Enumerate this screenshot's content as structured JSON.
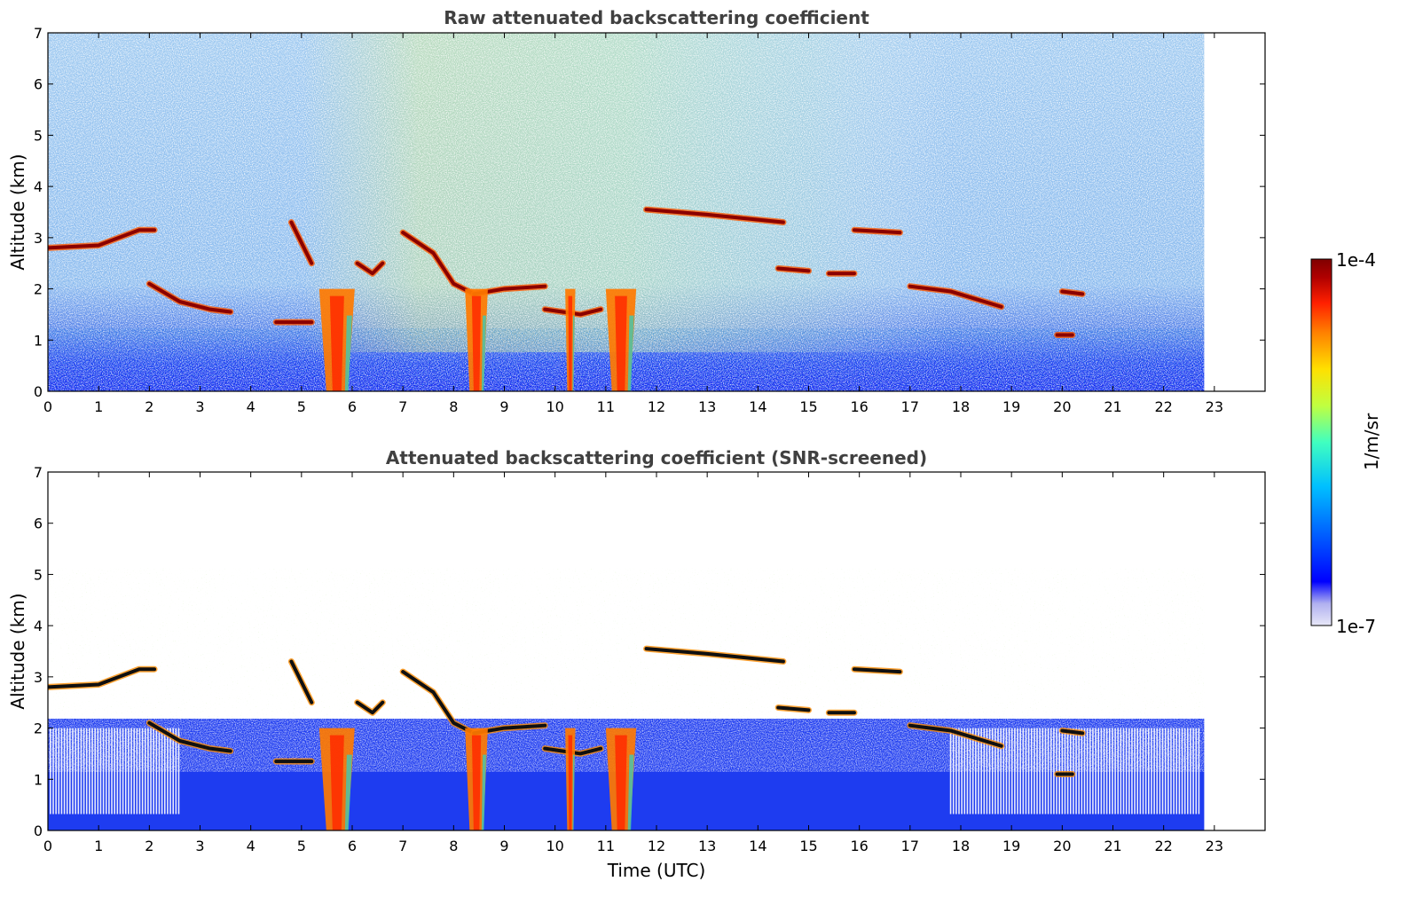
{
  "chart_data": [
    {
      "type": "heatmap",
      "title": "Raw attenuated backscattering coefficient",
      "xlabel": "",
      "ylabel": "Altitude (km)",
      "xlim": [
        0,
        24
      ],
      "ylim": [
        0,
        7
      ],
      "xticks": [
        "0",
        "1",
        "2",
        "3",
        "4",
        "5",
        "6",
        "7",
        "8",
        "9",
        "10",
        "11",
        "12",
        "13",
        "14",
        "15",
        "16",
        "17",
        "18",
        "19",
        "20",
        "21",
        "22",
        "23"
      ],
      "yticks": [
        "0",
        "1",
        "2",
        "3",
        "4",
        "5",
        "6",
        "7"
      ],
      "data_end_time": 22.8,
      "cloud_layers": [
        {
          "t": [
            0.0,
            1.0,
            1.8,
            2.1
          ],
          "alt": [
            2.8,
            2.85,
            3.15,
            3.15
          ]
        },
        {
          "t": [
            2.0,
            2.6,
            3.2,
            3.6
          ],
          "alt": [
            2.1,
            1.75,
            1.6,
            1.55
          ]
        },
        {
          "t": [
            4.5,
            5.2
          ],
          "alt": [
            1.35,
            1.35
          ]
        },
        {
          "t": [
            4.8,
            5.2
          ],
          "alt": [
            3.3,
            2.5
          ]
        },
        {
          "t": [
            6.1,
            6.4,
            6.6
          ],
          "alt": [
            2.5,
            2.3,
            2.5
          ]
        },
        {
          "t": [
            7.0,
            7.6,
            8.0,
            8.4
          ],
          "alt": [
            3.1,
            2.7,
            2.1,
            1.9
          ]
        },
        {
          "t": [
            8.4,
            9.0,
            9.8
          ],
          "alt": [
            1.9,
            2.0,
            2.05
          ]
        },
        {
          "t": [
            9.8,
            10.5,
            10.9
          ],
          "alt": [
            1.6,
            1.5,
            1.6
          ]
        },
        {
          "t": [
            11.8,
            13.0,
            14.5
          ],
          "alt": [
            3.55,
            3.45,
            3.3
          ]
        },
        {
          "t": [
            14.4,
            15.0
          ],
          "alt": [
            2.4,
            2.35
          ]
        },
        {
          "t": [
            15.4,
            15.9
          ],
          "alt": [
            2.3,
            2.3
          ]
        },
        {
          "t": [
            15.9,
            16.8
          ],
          "alt": [
            3.15,
            3.1
          ]
        },
        {
          "t": [
            17.0,
            17.8,
            18.8
          ],
          "alt": [
            2.05,
            1.95,
            1.65
          ]
        },
        {
          "t": [
            19.9,
            20.2
          ],
          "alt": [
            1.1,
            1.1
          ]
        },
        {
          "t": [
            20.0,
            20.4
          ],
          "alt": [
            1.95,
            1.9
          ]
        }
      ],
      "precipitation": [
        {
          "t": 5.7,
          "width": 0.7
        },
        {
          "t": 8.45,
          "width": 0.45
        },
        {
          "t": 10.3,
          "width": 0.2
        },
        {
          "t": 11.3,
          "width": 0.6
        }
      ]
    },
    {
      "type": "heatmap",
      "title": "Attenuated backscattering coefficient (SNR-screened)",
      "xlabel": "Time (UTC)",
      "ylabel": "Altitude (km)",
      "xlim": [
        0,
        24
      ],
      "ylim": [
        0,
        7
      ],
      "xticks": [
        "0",
        "1",
        "2",
        "3",
        "4",
        "5",
        "6",
        "7",
        "8",
        "9",
        "10",
        "11",
        "12",
        "13",
        "14",
        "15",
        "16",
        "17",
        "18",
        "19",
        "20",
        "21",
        "22",
        "23"
      ],
      "yticks": [
        "0",
        "1",
        "2",
        "3",
        "4",
        "5",
        "6",
        "7"
      ],
      "data_end_time": 22.8
    }
  ],
  "colorbar": {
    "max_label": "1e-4",
    "min_label": "1e-7",
    "label": "1/m/sr",
    "colors": [
      "#e8e8f8",
      "#b0b0f0",
      "#0000ff",
      "#0060ff",
      "#00c0ff",
      "#40ffc0",
      "#c0ff40",
      "#ffe000",
      "#ff8000",
      "#ff2000",
      "#b00000",
      "#800000"
    ]
  }
}
